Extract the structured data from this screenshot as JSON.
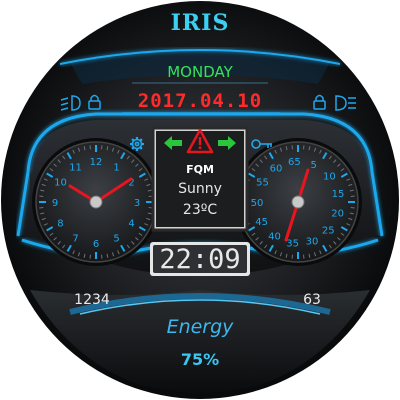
{
  "brand": "IRIS",
  "header": {
    "day": "MONDAY",
    "date": "2017.04.10"
  },
  "center_panel": {
    "alert_code": "FQM",
    "weather": "Sunny",
    "temperature": "23ºC"
  },
  "time": "22:09",
  "left_dial": {
    "labels": [
      "12",
      "1",
      "2",
      "3",
      "4",
      "5",
      "6",
      "7",
      "8",
      "9",
      "10",
      "11"
    ],
    "hour_hand_angle_deg": 304.5,
    "minute_hand_angle_deg": 54
  },
  "right_dial": {
    "labels": [
      "55",
      "60",
      "65",
      "5",
      "10",
      "15",
      "20",
      "25",
      "30",
      "35",
      "40",
      "45",
      "50"
    ],
    "value": "23"
  },
  "bottom": {
    "left_value": "1234",
    "right_value": "63",
    "energy_label": "Energy",
    "energy_percent": "75%"
  },
  "icons": [
    "low-beam-icon",
    "lock-icon",
    "high-beam-icon",
    "gear-icon",
    "key-icon",
    "warning-icon",
    "left-turn-arrow-icon",
    "right-turn-arrow-icon"
  ],
  "colors": {
    "accent": "#1ea8ec",
    "day": "#37e15a",
    "date": "#ff2a2a",
    "hand": "#e8151f",
    "brand": "#3ad0f2"
  }
}
